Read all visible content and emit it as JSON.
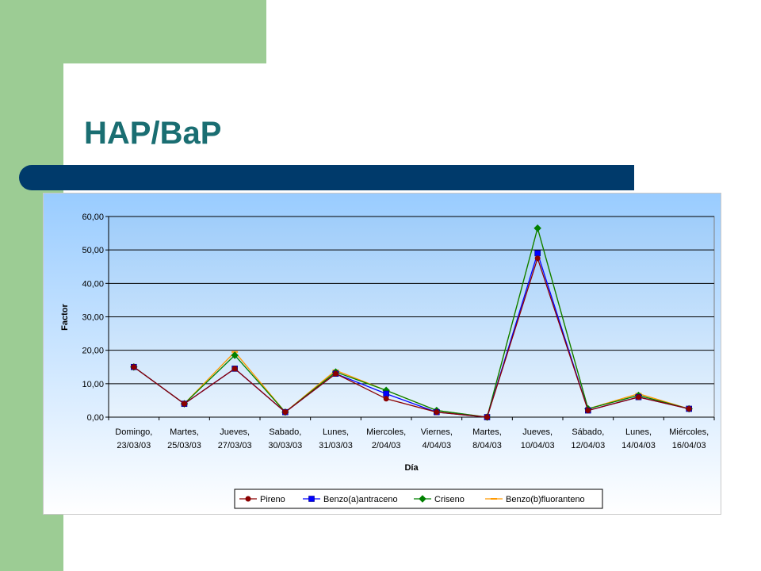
{
  "slide": {
    "title": "HAP/BaP",
    "colors": {
      "green_band": "#9ccc94",
      "title_text": "#1a6e72",
      "title_bar": "#003a6b"
    }
  },
  "chart_data": {
    "type": "line",
    "title": "",
    "xlabel": "Día",
    "ylabel": "Factor",
    "ylim": [
      0,
      60
    ],
    "yticks": [
      "0,00",
      "10,00",
      "20,00",
      "30,00",
      "40,00",
      "50,00",
      "60,00"
    ],
    "ytick_values": [
      0,
      10,
      20,
      30,
      40,
      50,
      60
    ],
    "grid": true,
    "legend_position": "bottom",
    "plot_background": "gradient light blue",
    "categories": [
      [
        "Domingo,",
        "23/03/03"
      ],
      [
        "Martes,",
        "25/03/03"
      ],
      [
        "Jueves,",
        "27/03/03"
      ],
      [
        "Sabado,",
        "30/03/03"
      ],
      [
        "Lunes,",
        "31/03/03"
      ],
      [
        "Miercoles,",
        "2/04/03"
      ],
      [
        "Viernes,",
        "4/04/03"
      ],
      [
        "Martes,",
        "8/04/03"
      ],
      [
        "Jueves,",
        "10/04/03"
      ],
      [
        "Sábado,",
        "12/04/03"
      ],
      [
        "Lunes,",
        "14/04/03"
      ],
      [
        "Miércoles,",
        "16/04/03"
      ]
    ],
    "series": [
      {
        "name": "Pireno",
        "color": "#8b0000",
        "marker": "circle",
        "values": [
          15.0,
          4.0,
          14.5,
          1.5,
          13.0,
          5.5,
          1.5,
          0.0,
          47.5,
          2.0,
          6.0,
          2.5
        ]
      },
      {
        "name": "Benzo(a)antraceno",
        "color": "#0000ff",
        "marker": "square",
        "values": [
          15.0,
          4.0,
          14.5,
          1.5,
          13.0,
          7.0,
          1.5,
          0.0,
          49.0,
          2.0,
          6.0,
          2.5
        ]
      },
      {
        "name": "Criseno",
        "color": "#008000",
        "marker": "diamond",
        "values": [
          15.0,
          4.0,
          18.5,
          1.5,
          13.5,
          8.0,
          2.0,
          0.0,
          56.5,
          2.5,
          6.5,
          2.5
        ]
      },
      {
        "name": "Benzo(b)fluoranteno",
        "color": "#ff9900",
        "marker": "dash",
        "values": [
          15.0,
          4.0,
          19.5,
          1.5,
          14.0,
          8.0,
          2.0,
          0.0,
          56.5,
          2.5,
          7.0,
          2.5
        ]
      }
    ]
  }
}
